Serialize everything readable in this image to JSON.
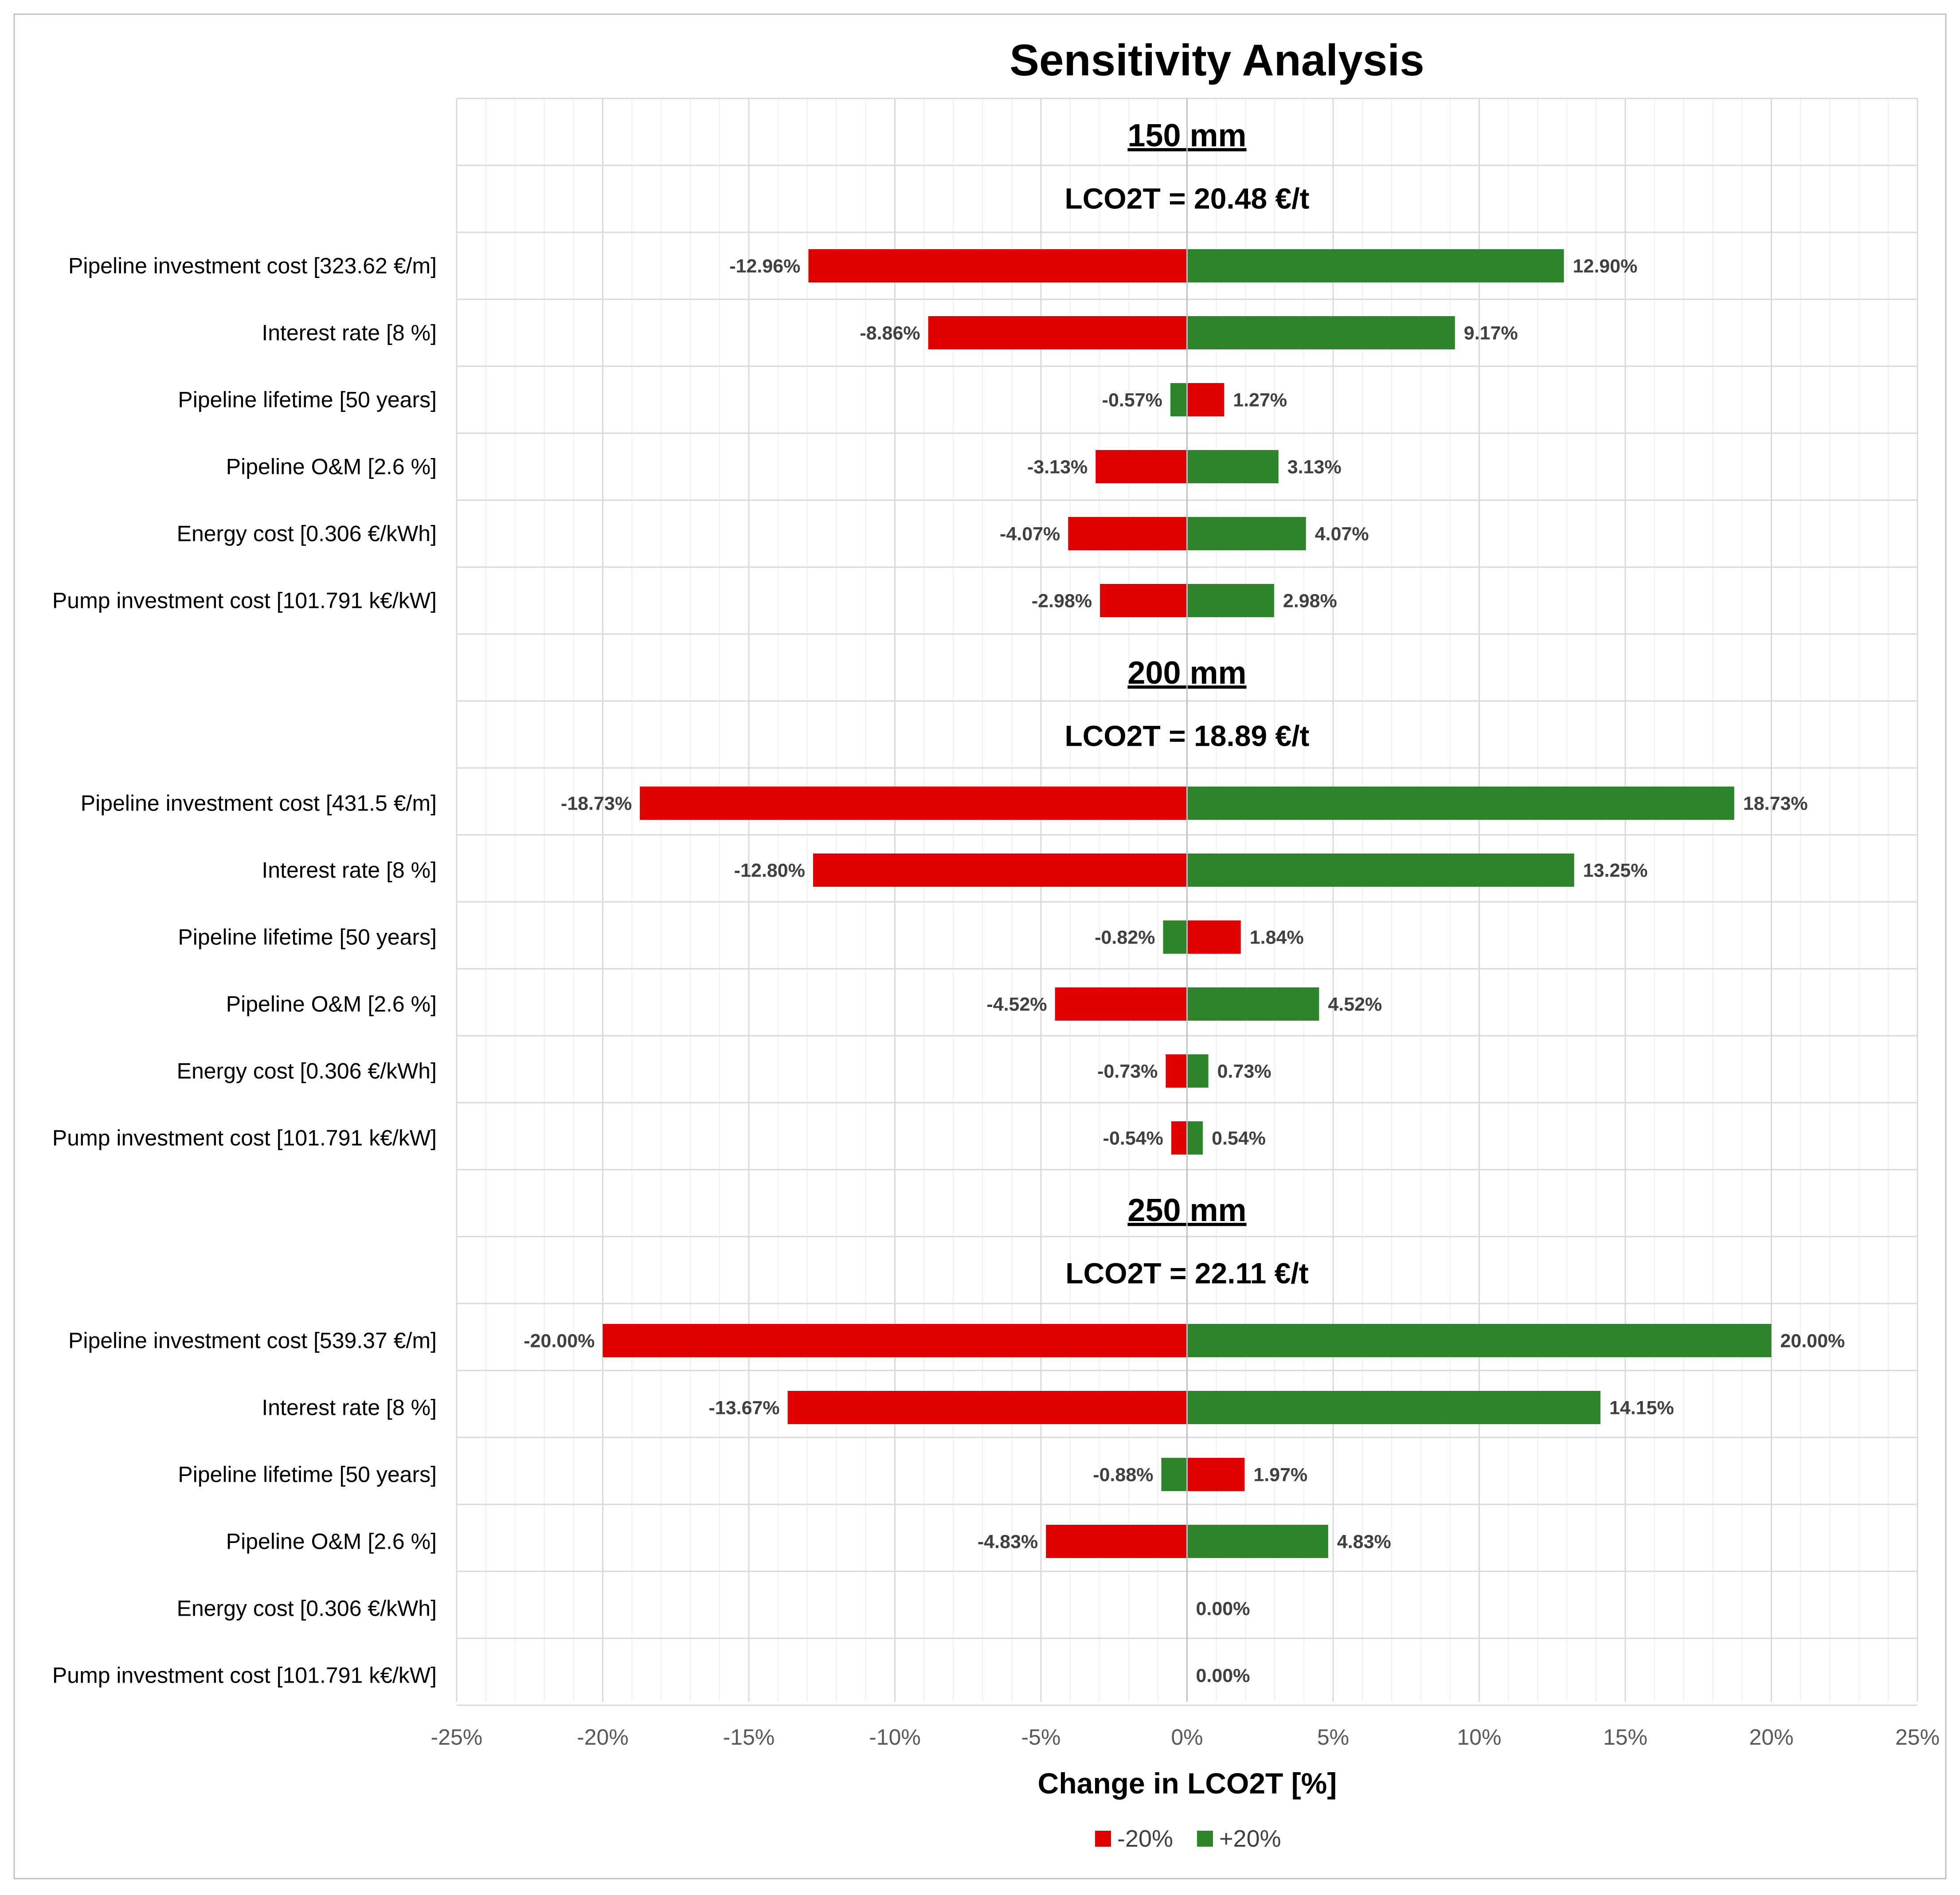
{
  "colors": {
    "neg": "#e00000",
    "pos": "#2e842a",
    "grid": "#d9d9d9",
    "minorgrid": "#efefef",
    "frame": "#bfbfbf"
  },
  "chart_data": {
    "type": "bar",
    "orientation": "horizontal",
    "title": "Sensitivity Analysis",
    "xlabel": "Change in LCO2T [%]",
    "xlim": [
      -25,
      25
    ],
    "xticks": [
      "-25%",
      "-20%",
      "-15%",
      "-10%",
      "-5%",
      "0%",
      "5%",
      "10%",
      "15%",
      "20%",
      "25%"
    ],
    "legend": [
      {
        "name": "-20%",
        "color": "#e00000"
      },
      {
        "name": "+20%",
        "color": "#2e842a"
      }
    ],
    "groups": [
      {
        "title": "150 mm",
        "subtitle": "LCO2T = 20.48 €/t",
        "rows": [
          {
            "label": "Pipeline investment cost [323.62 €/m]",
            "minus20": -12.96,
            "plus20": 12.9,
            "minus_label": "-12.96%",
            "plus_label": "12.90%"
          },
          {
            "label": "Interest rate [8 %]",
            "minus20": -8.86,
            "plus20": 9.17,
            "minus_label": "-8.86%",
            "plus_label": "9.17%"
          },
          {
            "label": "Pipeline lifetime [50 years]",
            "minus20": -0.57,
            "plus20": 1.27,
            "minus_label": "-0.57%",
            "plus_label": "1.27%",
            "swapped_colors": true
          },
          {
            "label": "Pipeline O&M [2.6 %]",
            "minus20": -3.13,
            "plus20": 3.13,
            "minus_label": "-3.13%",
            "plus_label": "3.13%"
          },
          {
            "label": "Energy cost [0.306 €/kWh]",
            "minus20": -4.07,
            "plus20": 4.07,
            "minus_label": "-4.07%",
            "plus_label": "4.07%"
          },
          {
            "label": "Pump investment cost [101.791 k€/kW]",
            "minus20": -2.98,
            "plus20": 2.98,
            "minus_label": "-2.98%",
            "plus_label": "2.98%"
          }
        ]
      },
      {
        "title": "200 mm",
        "subtitle": "LCO2T = 18.89 €/t",
        "rows": [
          {
            "label": "Pipeline investment cost [431.5 €/m]",
            "minus20": -18.73,
            "plus20": 18.73,
            "minus_label": "-18.73%",
            "plus_label": "18.73%"
          },
          {
            "label": "Interest rate [8 %]",
            "minus20": -12.8,
            "plus20": 13.25,
            "minus_label": "-12.80%",
            "plus_label": "13.25%"
          },
          {
            "label": "Pipeline lifetime [50 years]",
            "minus20": -0.82,
            "plus20": 1.84,
            "minus_label": "-0.82%",
            "plus_label": "1.84%",
            "swapped_colors": true
          },
          {
            "label": "Pipeline O&M [2.6 %]",
            "minus20": -4.52,
            "plus20": 4.52,
            "minus_label": "-4.52%",
            "plus_label": "4.52%"
          },
          {
            "label": "Energy cost [0.306 €/kWh]",
            "minus20": -0.73,
            "plus20": 0.73,
            "minus_label": "-0.73%",
            "plus_label": "0.73%"
          },
          {
            "label": "Pump investment cost [101.791 k€/kW]",
            "minus20": -0.54,
            "plus20": 0.54,
            "minus_label": "-0.54%",
            "plus_label": "0.54%"
          }
        ]
      },
      {
        "title": "250 mm",
        "subtitle": "LCO2T = 22.11 €/t",
        "rows": [
          {
            "label": "Pipeline investment cost [539.37 €/m]",
            "minus20": -20.0,
            "plus20": 20.0,
            "minus_label": "-20.00%",
            "plus_label": "20.00%"
          },
          {
            "label": "Interest rate [8 %]",
            "minus20": -13.67,
            "plus20": 14.15,
            "minus_label": "-13.67%",
            "plus_label": "14.15%"
          },
          {
            "label": "Pipeline lifetime [50 years]",
            "minus20": -0.88,
            "plus20": 1.97,
            "minus_label": "-0.88%",
            "plus_label": "1.97%",
            "swapped_colors": true
          },
          {
            "label": "Pipeline O&M [2.6 %]",
            "minus20": -4.83,
            "plus20": 4.83,
            "minus_label": "-4.83%",
            "plus_label": "4.83%"
          },
          {
            "label": "Energy cost [0.306 €/kWh]",
            "minus20": 0,
            "plus20": 0,
            "minus_label": "",
            "plus_label": "0.00%"
          },
          {
            "label": "Pump investment cost [101.791 k€/kW]",
            "minus20": 0,
            "plus20": 0,
            "minus_label": "",
            "plus_label": "0.00%"
          }
        ]
      }
    ]
  }
}
